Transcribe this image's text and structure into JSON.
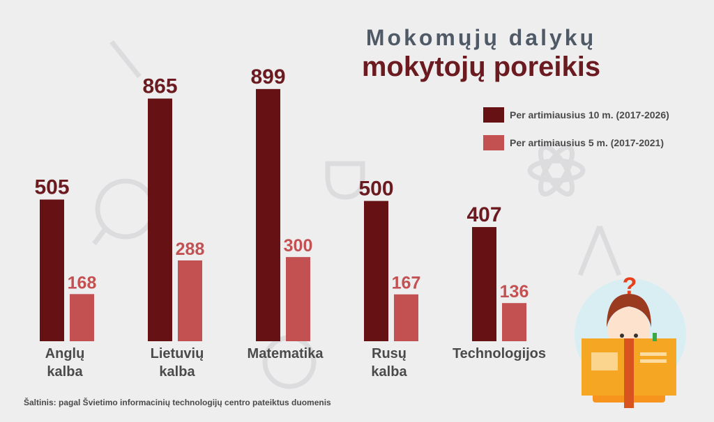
{
  "title_line1": "Mokomųjų dalykų",
  "title_line2": "mokytojų poreikis",
  "source": "Šaltinis: pagal Švietimo informacinių technologijų centro pateiktus duomenis",
  "colors": {
    "series_10y": "#661214",
    "series_5y": "#c35152",
    "title_gray": "#4f5a66",
    "label_dark": "#6b1a1f"
  },
  "chart_data": {
    "type": "bar",
    "title": "Mokomųjų dalykų mokytojų poreikis",
    "categories": [
      [
        "Anglų",
        "kalba"
      ],
      [
        "Lietuvių",
        "kalba"
      ],
      [
        "Matematika"
      ],
      [
        "Rusų",
        "kalba"
      ],
      [
        "Technologijos"
      ]
    ],
    "series": [
      {
        "name": "Per artimiausius 10 m. (2017-2026)",
        "color": "#661214",
        "values": [
          505,
          865,
          899,
          500,
          407
        ]
      },
      {
        "name": "Per artimiausius 5 m. (2017-2021)",
        "color": "#c35152",
        "values": [
          168,
          288,
          300,
          167,
          136
        ]
      }
    ],
    "ylim": [
      0,
      1050
    ],
    "grid": false,
    "legend_position": "top-right",
    "data_labels": true
  }
}
